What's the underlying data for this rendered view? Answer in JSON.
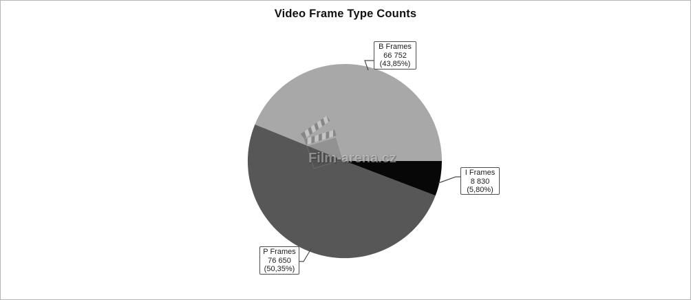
{
  "title": "Video Frame Type Counts",
  "watermark": {
    "text": "Film-arena.cz",
    "icon": "clapperboard-icon"
  },
  "chart_data": {
    "type": "pie",
    "title": "Video Frame Type Counts",
    "slices": [
      {
        "label": "B Frames",
        "value": 66752,
        "value_text": "66 752",
        "pct": 43.85,
        "pct_text": "(43,85%)",
        "color": "#a8a8a8"
      },
      {
        "label": "P Frames",
        "value": 76650,
        "value_text": "76 650",
        "pct": 50.35,
        "pct_text": "(50,35%)",
        "color": "#575757"
      },
      {
        "label": "I Frames",
        "value": 8830,
        "value_text": "8 830",
        "pct": 5.8,
        "pct_text": "(5,80%)",
        "color": "#070707"
      }
    ],
    "start_angle_deg": 0,
    "direction": "ccw",
    "legend": "none",
    "label_style": "callout-boxes"
  },
  "colors": {
    "background": "#ffffff",
    "frame_border": "#b5b5b5",
    "title_text": "#111111",
    "callout_border": "#4c4c4c",
    "callout_background": "#ffffff",
    "leader_line": "#4c4c4c",
    "slice_b_frames": "#a8a8a8",
    "slice_p_frames": "#575757",
    "slice_i_frames": "#070707"
  }
}
